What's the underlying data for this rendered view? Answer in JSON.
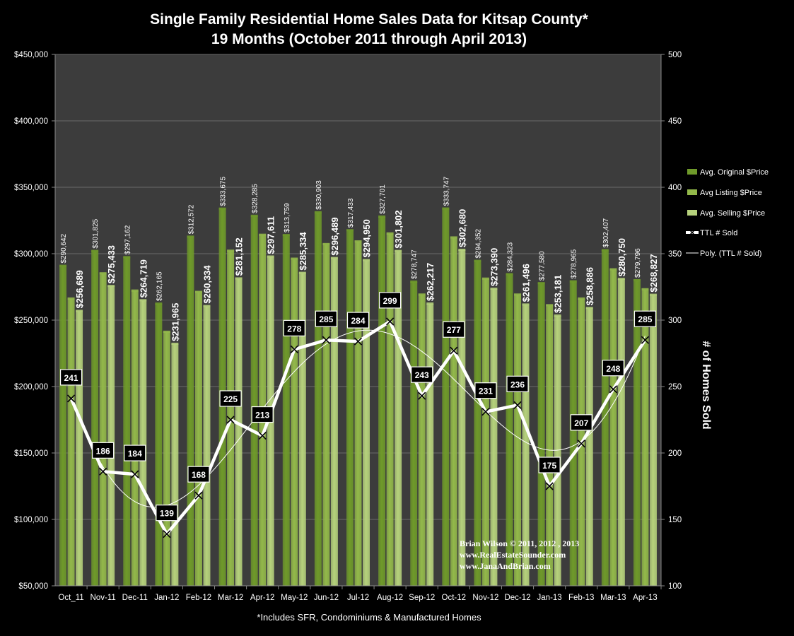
{
  "chart_data": {
    "type": "bar",
    "title": "Single Family Residential Home Sales Data for Kitsap County*",
    "subtitle": "19 Months (October 2011 through April 2013)",
    "footnote": "*Includes SFR, Condominiums & Manufactured Homes",
    "credit": [
      "Brian Wilson  © 2011, 2012 , 2013",
      "www.RealEstateSounder.com",
      "www.JanaAndBrian.com"
    ],
    "categories": [
      "Oct_11",
      "Nov-11",
      "Dec-11",
      "Jan-12",
      "Feb-12",
      "Mar-12",
      "Apr-12",
      "May-12",
      "Jun-12",
      "Jul-12",
      "Aug-12",
      "Sep-12",
      "Oct-12",
      "Nov-12",
      "Dec-12",
      "Jan-13",
      "Feb-13",
      "Mar-13",
      "Apr-13"
    ],
    "y_left": {
      "min": 50000,
      "max": 450000,
      "step": 50000,
      "ticks": [
        "$50,000",
        "$100,000",
        "$150,000",
        "$200,000",
        "$250,000",
        "$300,000",
        "$350,000",
        "$400,000",
        "$450,000"
      ]
    },
    "y_right": {
      "min": 100,
      "max": 500,
      "step": 50,
      "label": "# of Homes Sold",
      "ticks": [
        "100",
        "150",
        "200",
        "250",
        "300",
        "350",
        "400",
        "450",
        "500"
      ]
    },
    "series": [
      {
        "name": "Avg. Original $Price",
        "color": "#6f9a2a",
        "values": [
          290642,
          301825,
          297162,
          262165,
          312572,
          333675,
          328285,
          313759,
          330903,
          317433,
          327701,
          278747,
          333747,
          294352,
          284323,
          277580,
          278965,
          302407,
          279796
        ],
        "labels": [
          "$290,642",
          "$301,825",
          "$297,162",
          "$262,165",
          "$312,572",
          "$333,675",
          "$328,285",
          "$313,759",
          "$330,903",
          "$317,433",
          "$327,701",
          "$278,747",
          "$333,747",
          "$294,352",
          "$284,323",
          "$277,580",
          "$278,965",
          "$302,407",
          "$279,796"
        ]
      },
      {
        "name": "Avg Listing $Price",
        "color": "#93b94a",
        "values": [
          266000,
          285000,
          272000,
          241000,
          271000,
          302000,
          314000,
          296000,
          307000,
          309000,
          315000,
          269000,
          312000,
          281000,
          269000,
          261000,
          266000,
          288000,
          273000
        ]
      },
      {
        "name": "Avg. Selling $Price",
        "color": "#b6d27c",
        "values": [
          256689,
          275433,
          264719,
          231965,
          260334,
          281152,
          297611,
          285334,
          296489,
          294950,
          301802,
          262217,
          302680,
          273390,
          261496,
          253181,
          258886,
          280750,
          268827
        ],
        "labels": [
          "$256,689",
          "$275,433",
          "$264,719",
          "$231,965",
          "$260,334",
          "$281,152",
          "$297,611",
          "$285,334",
          "$296,489",
          "$294,950",
          "$301,802",
          "$262,217",
          "$302,680",
          "$273,390",
          "$261,496",
          "$253,181",
          "$258,886",
          "$280,750",
          "$268,827"
        ]
      },
      {
        "name": "TTL # Sold",
        "type": "line",
        "axis": "right",
        "color": "#ffffff",
        "values": [
          241,
          186,
          184,
          139,
          168,
          225,
          213,
          278,
          285,
          284,
          299,
          243,
          277,
          231,
          236,
          175,
          207,
          248,
          285
        ],
        "labels": [
          "241",
          "186",
          "184",
          "139",
          "168",
          "225",
          "213",
          "278",
          "285",
          "284",
          "299",
          "243",
          "277",
          "231",
          "236",
          "175",
          "207",
          "248",
          "285"
        ]
      },
      {
        "name": "Poly. (TTL # Sold)",
        "type": "trendline",
        "axis": "right",
        "color": "#ffffff"
      }
    ],
    "legend": "right",
    "grid": true
  }
}
